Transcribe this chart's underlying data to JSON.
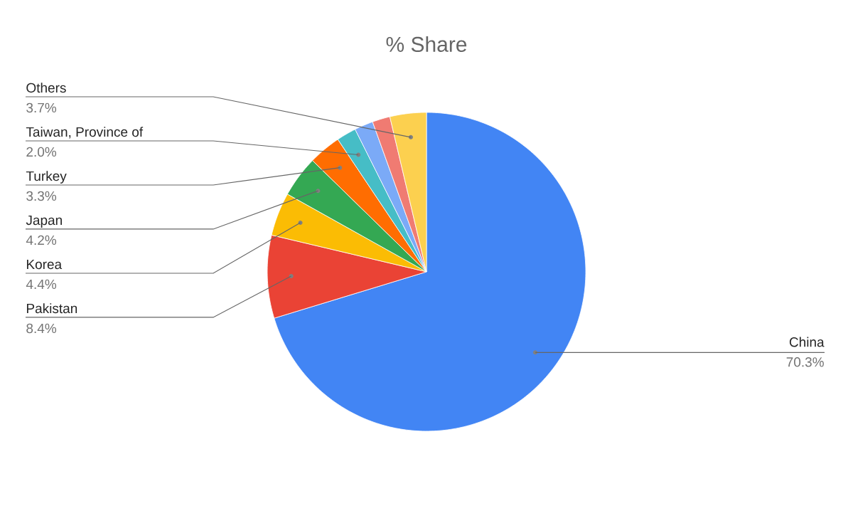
{
  "chart_data": {
    "type": "pie",
    "title": "% Share",
    "categories": [
      "China",
      "Pakistan",
      "Korea",
      "Japan",
      "Turkey",
      "Taiwan, Province of",
      null,
      null,
      "Others"
    ],
    "values": [
      70.3,
      8.4,
      4.4,
      4.2,
      3.3,
      2.0,
      1.9,
      1.8,
      3.7
    ],
    "value_labels": [
      "70.3%",
      "8.4%",
      "4.4%",
      "4.2%",
      "3.3%",
      "2.0%",
      null,
      null,
      "3.7%"
    ],
    "colors": [
      "#4285f4",
      "#ea4335",
      "#fbbc04",
      "#34a853",
      "#ff6d01",
      "#46bdc6",
      "#7baaf7",
      "#f07b72",
      "#fcd04f"
    ]
  }
}
